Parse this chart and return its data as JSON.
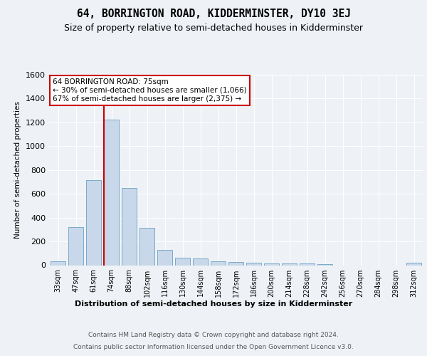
{
  "title": "64, BORRINGTON ROAD, KIDDERMINSTER, DY10 3EJ",
  "subtitle": "Size of property relative to semi-detached houses in Kidderminster",
  "xlabel_bottom": "Distribution of semi-detached houses by size in Kidderminster",
  "ylabel": "Number of semi-detached properties",
  "footer_line1": "Contains HM Land Registry data © Crown copyright and database right 2024.",
  "footer_line2": "Contains public sector information licensed under the Open Government Licence v3.0.",
  "categories": [
    "33sqm",
    "47sqm",
    "61sqm",
    "74sqm",
    "88sqm",
    "102sqm",
    "116sqm",
    "130sqm",
    "144sqm",
    "158sqm",
    "172sqm",
    "186sqm",
    "200sqm",
    "214sqm",
    "228sqm",
    "242sqm",
    "256sqm",
    "270sqm",
    "284sqm",
    "298sqm",
    "312sqm"
  ],
  "values": [
    30,
    320,
    715,
    1225,
    650,
    315,
    130,
    65,
    55,
    30,
    25,
    20,
    15,
    15,
    15,
    10,
    0,
    0,
    0,
    0,
    20
  ],
  "bar_color": "#c8d8ea",
  "bar_edge_color": "#7aaac8",
  "highlight_bar_index": 3,
  "highlight_line_color": "#cc0000",
  "annotation_text_line1": "64 BORRINGTON ROAD: 75sqm",
  "annotation_text_line2": "← 30% of semi-detached houses are smaller (1,066)",
  "annotation_text_line3": "67% of semi-detached houses are larger (2,375) →",
  "annotation_box_color": "#ffffff",
  "annotation_box_edge_color": "#cc0000",
  "ylim": [
    0,
    1600
  ],
  "yticks": [
    0,
    200,
    400,
    600,
    800,
    1000,
    1200,
    1400,
    1600
  ],
  "background_color": "#eef2f7",
  "grid_color": "#ffffff",
  "title_fontsize": 10.5,
  "subtitle_fontsize": 9
}
